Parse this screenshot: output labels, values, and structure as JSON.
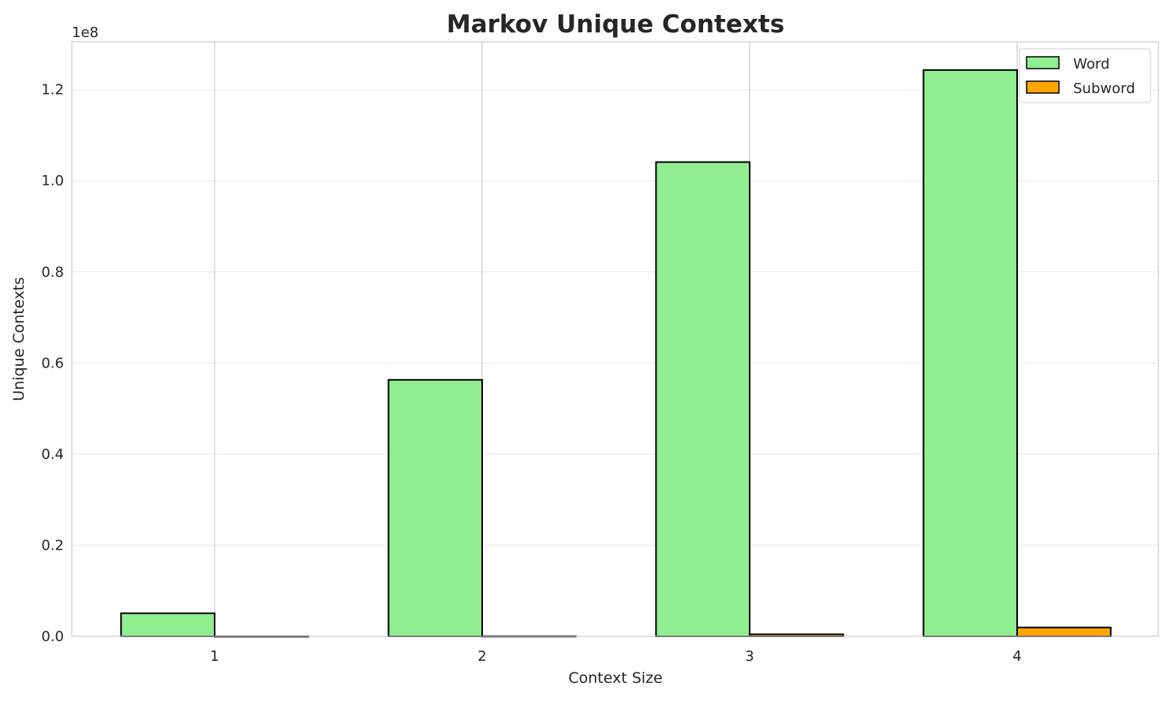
{
  "chart_data": {
    "type": "bar",
    "title": "Markov Unique Contexts",
    "xlabel": "Context Size",
    "ylabel": "Unique Contexts",
    "y_offset_label": "1e8",
    "categories": [
      "1",
      "2",
      "3",
      "4"
    ],
    "x": [
      1,
      2,
      3,
      4
    ],
    "series": [
      {
        "name": "Word",
        "color": "#90ee90",
        "values": [
          5070000,
          56300000,
          104100000,
          124300000
        ]
      },
      {
        "name": "Subword",
        "color": "#ffa500",
        "values": [
          10000,
          40000,
          450000,
          1950000
        ]
      }
    ],
    "ylim": [
      0,
      130500000
    ],
    "xlim": [
      0.466,
      4.528
    ],
    "yticks": [
      0,
      20000000,
      40000000,
      60000000,
      80000000,
      100000000,
      120000000
    ],
    "ytick_labels": [
      "0.0",
      "0.2",
      "0.4",
      "0.6",
      "0.8",
      "1.0",
      "1.2"
    ],
    "grid": true,
    "legend_placement": "top-right",
    "bar_edge_color": "#000000"
  }
}
